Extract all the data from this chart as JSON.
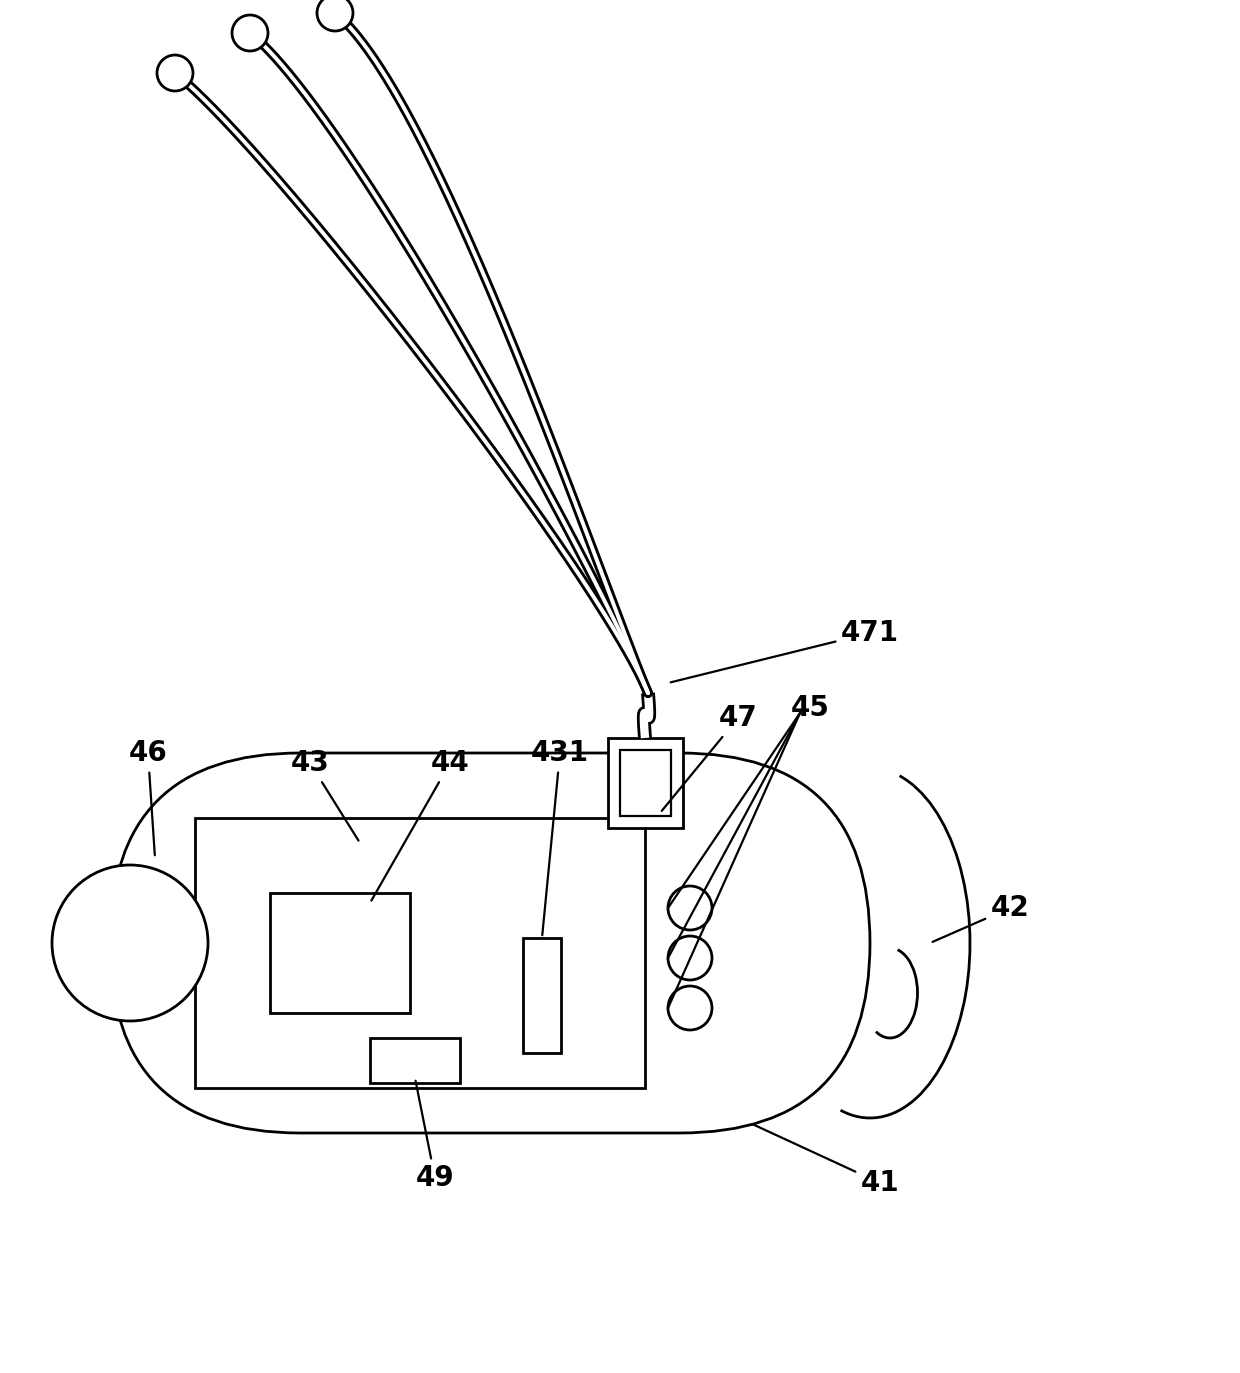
{
  "bg_color": "#ffffff",
  "line_color": "#000000",
  "thick_lw": 7,
  "thin_lw": 2.0,
  "medium_lw": 2.5,
  "label_fontsize": 20,
  "figsize": [
    12.4,
    13.73
  ],
  "dpi": 100
}
